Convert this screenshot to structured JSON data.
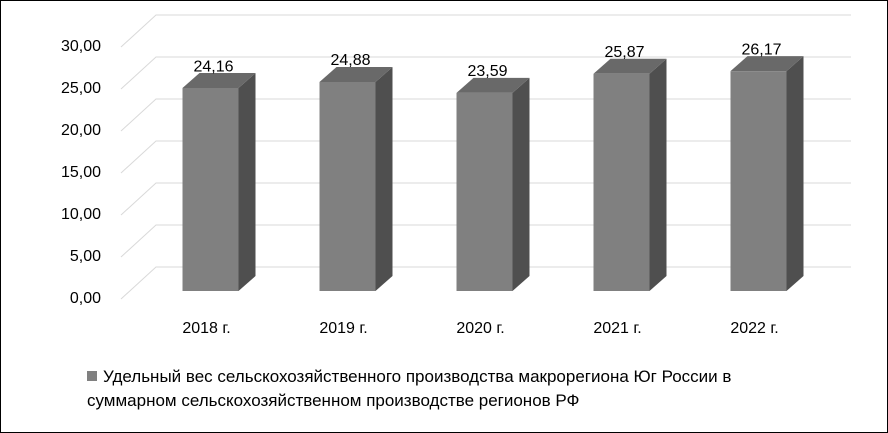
{
  "chart_data": {
    "type": "bar3d",
    "categories": [
      "2018 г.",
      "2019 г.",
      "2020 г.",
      "2021 г.",
      "2022 г."
    ],
    "series": [
      {
        "name": "Удельный вес сельскохозяйственного производства макрорегиона Юг России в суммарном сельскохозяйственном производстве регионов РФ",
        "color": "#808080",
        "values": [
          24.16,
          24.88,
          23.59,
          25.87,
          26.17
        ],
        "value_labels": [
          "24,16",
          "24,88",
          "23,59",
          "25,87",
          "26,17"
        ]
      }
    ],
    "ylim": [
      0,
      30
    ],
    "yticks": [
      {
        "value": 0,
        "label": "0,00"
      },
      {
        "value": 5,
        "label": "5,00"
      },
      {
        "value": 10,
        "label": "10,00"
      },
      {
        "value": 15,
        "label": "15,00"
      },
      {
        "value": 20,
        "label": "20,00"
      },
      {
        "value": 25,
        "label": "25,00"
      },
      {
        "value": 30,
        "label": "30,00"
      }
    ],
    "grid": true,
    "legend": "bottom"
  }
}
